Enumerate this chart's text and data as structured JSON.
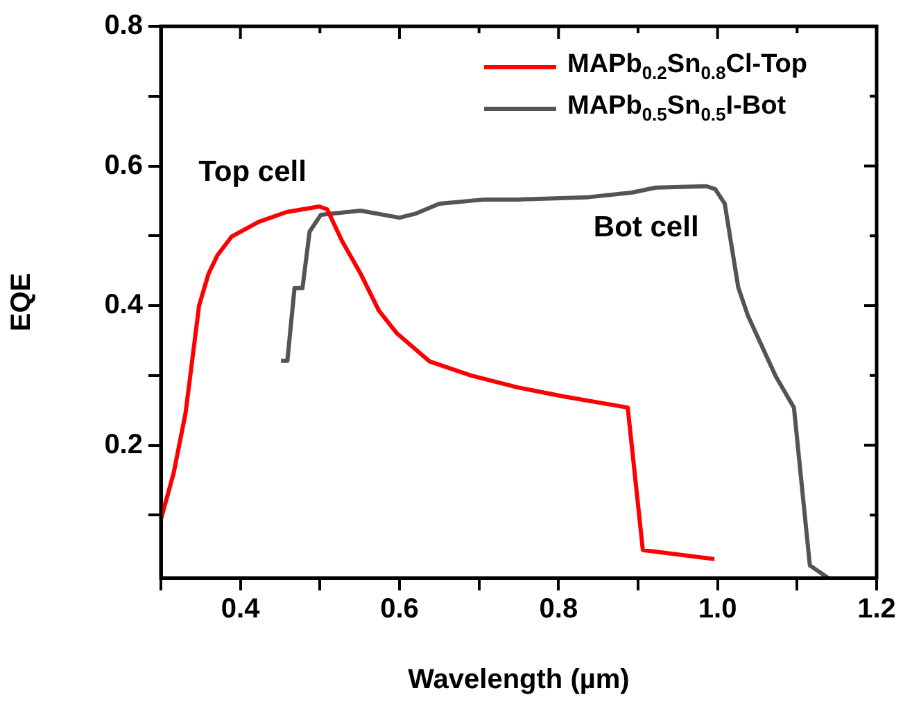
{
  "chart_data": {
    "type": "line",
    "xlabel": "Wavelength (µm)",
    "ylabel": "EQE",
    "xlim": [
      0.3,
      1.2
    ],
    "ylim": [
      0.01,
      0.8
    ],
    "xticks": [
      {
        "value": 0.3,
        "label": null
      },
      0.4,
      {
        "value": 0.5,
        "label": null
      },
      0.6,
      {
        "value": 0.7,
        "label": null
      },
      0.8,
      {
        "value": 0.9,
        "label": null
      },
      {
        "value": 1.0,
        "label": "1.0"
      },
      {
        "value": 1.1,
        "label": null
      },
      1.2
    ],
    "yticks": [
      {
        "value": 0.1,
        "label": null
      },
      0.2,
      {
        "value": 0.3,
        "label": null
      },
      0.4,
      {
        "value": 0.5,
        "label": null
      },
      0.6,
      {
        "value": 0.7,
        "label": null
      },
      0.8
    ],
    "legend": "top right",
    "grid": false,
    "marker": "none",
    "line_style": "solid",
    "annotations": [
      "Top cell",
      "Bot cell"
    ],
    "series": [
      {
        "name": "MAPb$_{0.2}$Sn$_{0.8}$Cl-Top",
        "color": "#ff0000",
        "x": [
          0.3,
          0.316,
          0.331,
          0.348,
          0.36,
          0.371,
          0.389,
          0.423,
          0.458,
          0.499,
          0.509,
          0.528,
          0.551,
          0.574,
          0.597,
          0.638,
          0.69,
          0.748,
          0.806,
          0.887,
          0.906,
          0.996
        ],
        "values": [
          0.094,
          0.16,
          0.246,
          0.4,
          0.446,
          0.472,
          0.499,
          0.52,
          0.534,
          0.542,
          0.538,
          0.492,
          0.446,
          0.393,
          0.36,
          0.32,
          0.3,
          0.283,
          0.27,
          0.254,
          0.05,
          0.037
        ]
      },
      {
        "name": "MAPb$_{0.5}$Sn$_{0.5}$I-Bot",
        "color": "#545454",
        "x": [
          0.451,
          0.459,
          0.468,
          0.478,
          0.487,
          0.501,
          0.551,
          0.6,
          0.621,
          0.65,
          0.707,
          0.748,
          0.835,
          0.893,
          0.922,
          0.986,
          0.997,
          1.009,
          1.026,
          1.038,
          1.073,
          1.096,
          1.116,
          1.139
        ],
        "values": [
          0.321,
          0.321,
          0.425,
          0.425,
          0.506,
          0.53,
          0.536,
          0.526,
          0.532,
          0.546,
          0.552,
          0.552,
          0.555,
          0.562,
          0.569,
          0.571,
          0.567,
          0.546,
          0.426,
          0.386,
          0.299,
          0.254,
          0.028,
          0.01
        ]
      }
    ]
  }
}
